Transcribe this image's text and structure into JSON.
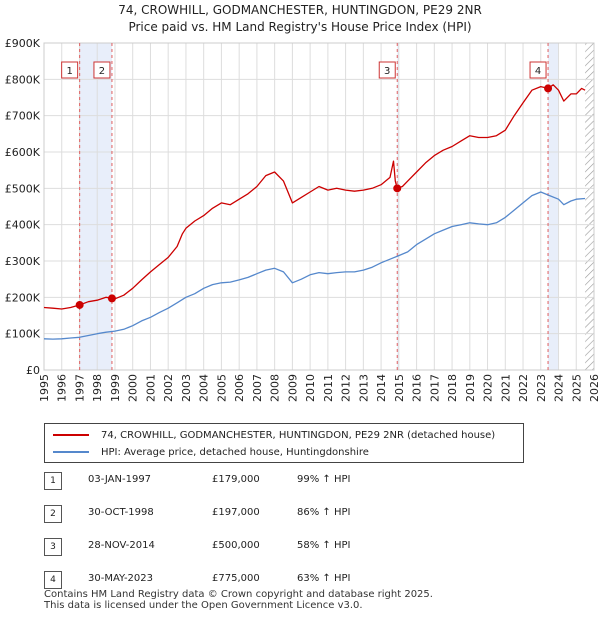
{
  "header": {
    "title_line1": "74, CROWHILL, GODMANCHESTER, HUNTINGDON, PE29 2NR",
    "title_line2": "Price paid vs. HM Land Registry's House Price Index (HPI)"
  },
  "chart_data": {
    "type": "line",
    "x_axis": {
      "min": 1995,
      "max": 2026,
      "ticks": [
        "1995",
        "1996",
        "1997",
        "1998",
        "1999",
        "2000",
        "2001",
        "2002",
        "2003",
        "2004",
        "2005",
        "2006",
        "2007",
        "2008",
        "2009",
        "2010",
        "2011",
        "2012",
        "2013",
        "2014",
        "2015",
        "2016",
        "2017",
        "2018",
        "2019",
        "2020",
        "2021",
        "2022",
        "2023",
        "2024",
        "2025",
        "2026"
      ]
    },
    "y_axis": {
      "min": 0,
      "max": 900000,
      "ticks": [
        {
          "value": 0,
          "label": "£0"
        },
        {
          "value": 100000,
          "label": "£100K"
        },
        {
          "value": 200000,
          "label": "£200K"
        },
        {
          "value": 300000,
          "label": "£300K"
        },
        {
          "value": 400000,
          "label": "£400K"
        },
        {
          "value": 500000,
          "label": "£500K"
        },
        {
          "value": 600000,
          "label": "£600K"
        },
        {
          "value": 700000,
          "label": "£700K"
        },
        {
          "value": 800000,
          "label": "£800K"
        },
        {
          "value": 900000,
          "label": "£900K"
        }
      ]
    },
    "grid": true,
    "series": [
      {
        "name": "74, CROWHILL, GODMANCHESTER, HUNTINGDON, PE29 2NR (detached house)",
        "color": "#cc0000",
        "points": [
          [
            1995.0,
            172000
          ],
          [
            1995.5,
            170000
          ],
          [
            1996.0,
            168000
          ],
          [
            1996.5,
            172000
          ],
          [
            1997.0,
            179000
          ],
          [
            1997.5,
            188000
          ],
          [
            1998.0,
            192000
          ],
          [
            1998.5,
            200000
          ],
          [
            1998.83,
            197000
          ],
          [
            1999.0,
            196000
          ],
          [
            1999.5,
            206000
          ],
          [
            2000.0,
            225000
          ],
          [
            2000.5,
            248000
          ],
          [
            2001.0,
            270000
          ],
          [
            2001.5,
            290000
          ],
          [
            2002.0,
            310000
          ],
          [
            2002.5,
            340000
          ],
          [
            2002.8,
            375000
          ],
          [
            2003.0,
            390000
          ],
          [
            2003.5,
            410000
          ],
          [
            2004.0,
            425000
          ],
          [
            2004.5,
            445000
          ],
          [
            2005.0,
            460000
          ],
          [
            2005.5,
            455000
          ],
          [
            2006.0,
            470000
          ],
          [
            2006.5,
            485000
          ],
          [
            2007.0,
            505000
          ],
          [
            2007.5,
            535000
          ],
          [
            2008.0,
            545000
          ],
          [
            2008.5,
            520000
          ],
          [
            2009.0,
            460000
          ],
          [
            2009.5,
            475000
          ],
          [
            2010.0,
            490000
          ],
          [
            2010.5,
            505000
          ],
          [
            2011.0,
            495000
          ],
          [
            2011.5,
            500000
          ],
          [
            2012.0,
            495000
          ],
          [
            2012.5,
            492000
          ],
          [
            2013.0,
            495000
          ],
          [
            2013.5,
            500000
          ],
          [
            2014.0,
            510000
          ],
          [
            2014.5,
            530000
          ],
          [
            2014.7,
            575000
          ],
          [
            2014.8,
            520000
          ],
          [
            2014.91,
            500000
          ],
          [
            2015.2,
            505000
          ],
          [
            2015.5,
            520000
          ],
          [
            2016.0,
            545000
          ],
          [
            2016.5,
            570000
          ],
          [
            2017.0,
            590000
          ],
          [
            2017.5,
            605000
          ],
          [
            2018.0,
            615000
          ],
          [
            2018.5,
            630000
          ],
          [
            2019.0,
            645000
          ],
          [
            2019.5,
            640000
          ],
          [
            2020.0,
            640000
          ],
          [
            2020.5,
            645000
          ],
          [
            2021.0,
            660000
          ],
          [
            2021.5,
            700000
          ],
          [
            2022.0,
            735000
          ],
          [
            2022.5,
            770000
          ],
          [
            2023.0,
            780000
          ],
          [
            2023.41,
            775000
          ],
          [
            2023.7,
            785000
          ],
          [
            2024.0,
            770000
          ],
          [
            2024.3,
            740000
          ],
          [
            2024.7,
            760000
          ],
          [
            2025.0,
            760000
          ],
          [
            2025.3,
            775000
          ],
          [
            2025.5,
            770000
          ]
        ]
      },
      {
        "name": "HPI: Average price, detached house, Huntingdonshire",
        "color": "#5588cc",
        "points": [
          [
            1995.0,
            86000
          ],
          [
            1995.5,
            85000
          ],
          [
            1996.0,
            86000
          ],
          [
            1996.5,
            88000
          ],
          [
            1997.0,
            90000
          ],
          [
            1997.5,
            95000
          ],
          [
            1998.0,
            100000
          ],
          [
            1998.5,
            104000
          ],
          [
            1999.0,
            107000
          ],
          [
            1999.5,
            112000
          ],
          [
            2000.0,
            122000
          ],
          [
            2000.5,
            135000
          ],
          [
            2001.0,
            145000
          ],
          [
            2001.5,
            158000
          ],
          [
            2002.0,
            170000
          ],
          [
            2002.5,
            185000
          ],
          [
            2003.0,
            200000
          ],
          [
            2003.5,
            210000
          ],
          [
            2004.0,
            225000
          ],
          [
            2004.5,
            235000
          ],
          [
            2005.0,
            240000
          ],
          [
            2005.5,
            242000
          ],
          [
            2006.0,
            248000
          ],
          [
            2006.5,
            255000
          ],
          [
            2007.0,
            265000
          ],
          [
            2007.5,
            275000
          ],
          [
            2008.0,
            280000
          ],
          [
            2008.5,
            270000
          ],
          [
            2009.0,
            240000
          ],
          [
            2009.5,
            250000
          ],
          [
            2010.0,
            262000
          ],
          [
            2010.5,
            268000
          ],
          [
            2011.0,
            265000
          ],
          [
            2011.5,
            268000
          ],
          [
            2012.0,
            270000
          ],
          [
            2012.5,
            270000
          ],
          [
            2013.0,
            275000
          ],
          [
            2013.5,
            283000
          ],
          [
            2014.0,
            295000
          ],
          [
            2014.5,
            305000
          ],
          [
            2015.0,
            315000
          ],
          [
            2015.5,
            325000
          ],
          [
            2016.0,
            345000
          ],
          [
            2016.5,
            360000
          ],
          [
            2017.0,
            375000
          ],
          [
            2017.5,
            385000
          ],
          [
            2018.0,
            395000
          ],
          [
            2018.5,
            400000
          ],
          [
            2019.0,
            405000
          ],
          [
            2019.5,
            402000
          ],
          [
            2020.0,
            400000
          ],
          [
            2020.5,
            405000
          ],
          [
            2021.0,
            420000
          ],
          [
            2021.5,
            440000
          ],
          [
            2022.0,
            460000
          ],
          [
            2022.5,
            480000
          ],
          [
            2023.0,
            490000
          ],
          [
            2023.5,
            480000
          ],
          [
            2024.0,
            470000
          ],
          [
            2024.3,
            455000
          ],
          [
            2024.7,
            465000
          ],
          [
            2025.0,
            470000
          ],
          [
            2025.5,
            472000
          ]
        ]
      }
    ],
    "transactions": [
      {
        "label": "1",
        "x": 1997.01,
        "price": 179000,
        "date": "03-JAN-1997",
        "price_text": "£179,000",
        "hpi_text": "99% ↑ HPI"
      },
      {
        "label": "2",
        "x": 1998.83,
        "price": 197000,
        "date": "30-OCT-1998",
        "price_text": "£197,000",
        "hpi_text": "86% ↑ HPI"
      },
      {
        "label": "3",
        "x": 2014.91,
        "price": 500000,
        "date": "28-NOV-2014",
        "price_text": "£500,000",
        "hpi_text": "58% ↑ HPI"
      },
      {
        "label": "4",
        "x": 2023.41,
        "price": 775000,
        "date": "30-MAY-2023",
        "price_text": "£775,000",
        "hpi_text": "63% ↑ HPI"
      }
    ],
    "shaded_periods": [
      [
        1997.01,
        1998.83
      ],
      [
        2014.91,
        2015.0
      ],
      [
        2023.41,
        2024.0
      ]
    ],
    "future_hatch_start": 2025.5
  },
  "legend": {
    "series1_label": "74, CROWHILL, GODMANCHESTER, HUNTINGDON, PE29 2NR (detached house)",
    "series2_label": "HPI: Average price, detached house, Huntingdonshire"
  },
  "footer": {
    "line1": "Contains HM Land Registry data © Crown copyright and database right 2025.",
    "line2": "This data is licensed under the Open Government Licence v3.0."
  }
}
